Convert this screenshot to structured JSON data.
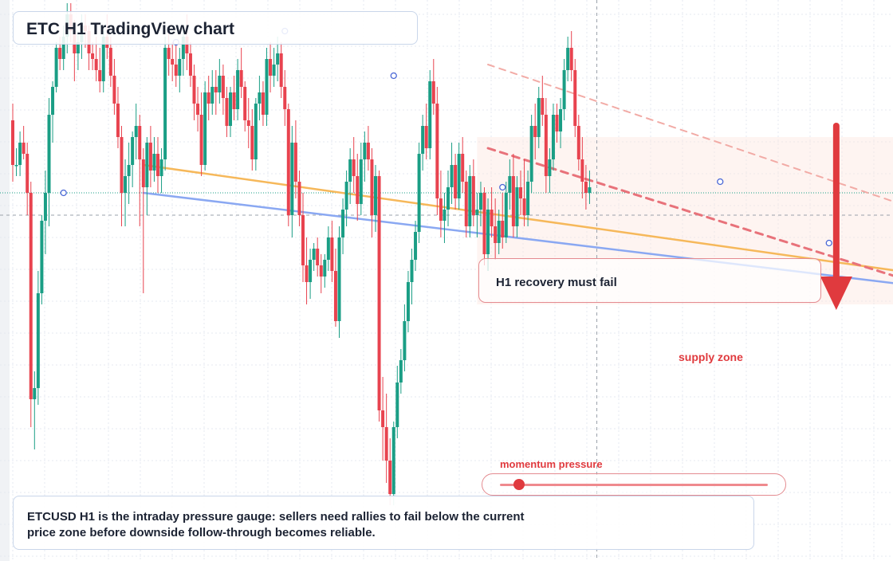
{
  "header": {
    "title": "ETC H1 TradingView chart"
  },
  "callout": {
    "text": "H1 recovery must fail"
  },
  "zone": {
    "label": "supply zone"
  },
  "gauge": {
    "label": "momentum pressure",
    "level": 0.07
  },
  "note": {
    "text": "ETCUSD H1 is the intraday pressure gauge: sellers need rallies to fail below the current price zone before downside follow-through becomes reliable."
  },
  "colors": {
    "bull": "#1a9e85",
    "bear": "#e8434f",
    "accent_red": "#e03a3e",
    "trend_orange": "#f6b85a",
    "trend_blue": "#8aa8f2",
    "supply_zone": "#fde7e0",
    "grid": "#e4e8f0",
    "price_line": "#1a9e85"
  },
  "icons": {
    "arrow": "down-arrow-icon",
    "marker": "circle-marker-icon"
  },
  "chart_data": {
    "type": "candlestick",
    "symbol": "ETCUSD",
    "timeframe": "H1",
    "y_units": "price (unlabeled axis)",
    "ylim": [
      0,
      100
    ],
    "current_price": 66,
    "grid": true,
    "candles": [
      [
        79,
        82,
        68,
        71
      ],
      [
        71,
        74,
        69,
        71
      ],
      [
        71,
        77,
        69,
        75
      ],
      [
        75,
        78,
        72,
        73
      ],
      [
        73,
        75,
        62,
        66
      ],
      [
        66,
        68,
        24,
        29
      ],
      [
        29,
        34,
        20,
        31
      ],
      [
        31,
        52,
        28,
        48
      ],
      [
        48,
        62,
        46,
        61
      ],
      [
        61,
        70,
        55,
        66
      ],
      [
        66,
        83,
        60,
        80
      ],
      [
        80,
        86,
        75,
        85
      ],
      [
        85,
        93,
        84,
        92
      ],
      [
        92,
        94,
        88,
        90
      ],
      [
        90,
        96,
        88,
        94
      ],
      [
        94,
        100,
        91,
        98
      ],
      [
        98,
        100,
        93,
        95
      ],
      [
        95,
        97,
        86,
        91
      ],
      [
        91,
        95,
        88,
        93
      ],
      [
        93,
        98,
        90,
        96
      ],
      [
        96,
        98,
        92,
        95
      ],
      [
        95,
        96,
        88,
        91
      ],
      [
        91,
        93,
        88,
        90
      ],
      [
        90,
        94,
        86,
        88
      ],
      [
        88,
        92,
        84,
        86
      ],
      [
        86,
        95,
        84,
        94
      ],
      [
        94,
        98,
        90,
        92
      ],
      [
        92,
        94,
        85,
        87
      ],
      [
        87,
        90,
        80,
        82
      ],
      [
        82,
        85,
        74,
        76
      ],
      [
        76,
        78,
        60,
        66
      ],
      [
        66,
        72,
        60,
        69
      ],
      [
        69,
        75,
        64,
        71
      ],
      [
        71,
        77,
        67,
        76
      ],
      [
        76,
        82,
        72,
        78
      ],
      [
        78,
        80,
        60,
        72
      ],
      [
        72,
        74,
        48,
        67
      ],
      [
        67,
        76,
        62,
        75
      ],
      [
        75,
        78,
        67,
        70
      ],
      [
        70,
        76,
        68,
        73
      ],
      [
        73,
        76,
        66,
        69
      ],
      [
        69,
        74,
        66,
        72
      ],
      [
        72,
        94,
        70,
        92
      ],
      [
        92,
        95,
        87,
        90
      ],
      [
        90,
        93,
        86,
        89
      ],
      [
        89,
        93,
        85,
        87
      ],
      [
        87,
        92,
        84,
        90
      ],
      [
        90,
        96,
        87,
        94
      ],
      [
        94,
        98,
        88,
        91
      ],
      [
        91,
        93,
        85,
        87
      ],
      [
        87,
        89,
        79,
        82
      ],
      [
        82,
        85,
        77,
        80
      ],
      [
        80,
        84,
        69,
        71
      ],
      [
        71,
        86,
        70,
        84
      ],
      [
        84,
        87,
        79,
        82
      ],
      [
        82,
        88,
        80,
        85
      ],
      [
        85,
        88,
        80,
        84
      ],
      [
        84,
        90,
        82,
        87
      ],
      [
        87,
        89,
        80,
        83
      ],
      [
        83,
        85,
        76,
        78
      ],
      [
        78,
        85,
        76,
        84
      ],
      [
        84,
        87,
        79,
        81
      ],
      [
        81,
        90,
        79,
        88
      ],
      [
        88,
        92,
        83,
        85
      ],
      [
        85,
        86,
        77,
        79
      ],
      [
        79,
        83,
        74,
        78
      ],
      [
        78,
        81,
        70,
        72
      ],
      [
        72,
        83,
        70,
        82
      ],
      [
        82,
        87,
        79,
        84
      ],
      [
        84,
        86,
        78,
        80
      ],
      [
        80,
        92,
        78,
        90
      ],
      [
        90,
        93,
        84,
        87
      ],
      [
        87,
        92,
        85,
        89
      ],
      [
        89,
        94,
        86,
        91
      ],
      [
        91,
        93,
        83,
        85
      ],
      [
        85,
        88,
        78,
        81
      ],
      [
        81,
        82,
        60,
        62
      ],
      [
        62,
        78,
        58,
        75
      ],
      [
        75,
        79,
        65,
        68
      ],
      [
        68,
        70,
        60,
        62
      ],
      [
        62,
        66,
        50,
        53
      ],
      [
        53,
        58,
        46,
        50
      ],
      [
        50,
        56,
        47,
        54
      ],
      [
        54,
        57,
        52,
        56
      ],
      [
        56,
        58,
        51,
        53
      ],
      [
        53,
        55,
        48,
        51
      ],
      [
        51,
        55,
        49,
        54
      ],
      [
        54,
        60,
        52,
        58
      ],
      [
        58,
        61,
        50,
        52
      ],
      [
        52,
        56,
        42,
        43
      ],
      [
        43,
        60,
        40,
        58
      ],
      [
        58,
        65,
        55,
        63
      ],
      [
        63,
        70,
        60,
        68
      ],
      [
        68,
        74,
        64,
        72
      ],
      [
        72,
        76,
        66,
        69
      ],
      [
        69,
        73,
        61,
        64
      ],
      [
        64,
        75,
        62,
        72
      ],
      [
        72,
        77,
        68,
        75
      ],
      [
        75,
        78,
        70,
        72
      ],
      [
        72,
        74,
        58,
        62
      ],
      [
        62,
        71,
        59,
        69
      ],
      [
        69,
        70,
        25,
        27
      ],
      [
        27,
        33,
        18,
        24
      ],
      [
        24,
        30,
        14,
        18
      ],
      [
        18,
        22,
        10,
        12
      ],
      [
        12,
        25,
        10,
        24
      ],
      [
        24,
        35,
        22,
        32
      ],
      [
        32,
        38,
        30,
        36
      ],
      [
        36,
        46,
        34,
        43
      ],
      [
        43,
        52,
        41,
        50
      ],
      [
        50,
        56,
        46,
        54
      ],
      [
        54,
        61,
        52,
        59
      ],
      [
        59,
        75,
        57,
        73
      ],
      [
        73,
        80,
        70,
        78
      ],
      [
        78,
        82,
        72,
        74
      ],
      [
        74,
        88,
        72,
        86
      ],
      [
        86,
        90,
        80,
        82
      ],
      [
        82,
        85,
        62,
        65
      ],
      [
        65,
        70,
        58,
        61
      ],
      [
        61,
        66,
        57,
        63
      ],
      [
        63,
        70,
        60,
        67
      ],
      [
        67,
        75,
        64,
        71
      ],
      [
        71,
        73,
        63,
        65
      ],
      [
        65,
        75,
        63,
        73
      ],
      [
        73,
        76,
        66,
        68
      ],
      [
        68,
        70,
        58,
        60
      ],
      [
        60,
        71,
        58,
        69
      ],
      [
        69,
        72,
        60,
        62
      ],
      [
        62,
        66,
        58,
        63
      ],
      [
        63,
        68,
        60,
        66
      ],
      [
        66,
        67,
        53,
        55
      ],
      [
        55,
        65,
        52,
        63
      ],
      [
        63,
        67,
        58,
        60
      ],
      [
        60,
        65,
        54,
        57
      ],
      [
        57,
        63,
        55,
        61
      ],
      [
        61,
        66,
        56,
        58
      ],
      [
        58,
        68,
        57,
        66
      ],
      [
        66,
        72,
        63,
        69
      ],
      [
        69,
        73,
        58,
        60
      ],
      [
        60,
        69,
        58,
        67
      ],
      [
        67,
        70,
        62,
        65
      ],
      [
        65,
        72,
        60,
        62
      ],
      [
        62,
        70,
        60,
        68
      ],
      [
        68,
        80,
        66,
        78
      ],
      [
        78,
        82,
        72,
        76
      ],
      [
        76,
        85,
        74,
        83
      ],
      [
        83,
        87,
        78,
        80
      ],
      [
        80,
        83,
        66,
        69
      ],
      [
        69,
        74,
        66,
        72
      ],
      [
        72,
        82,
        70,
        80
      ],
      [
        80,
        82,
        75,
        77
      ],
      [
        77,
        83,
        74,
        81
      ],
      [
        81,
        90,
        79,
        88
      ],
      [
        88,
        94,
        86,
        92
      ],
      [
        92,
        95,
        86,
        88
      ],
      [
        88,
        90,
        76,
        78
      ],
      [
        78,
        80,
        70,
        72
      ],
      [
        72,
        76,
        65,
        68
      ],
      [
        68,
        71,
        63,
        66
      ],
      [
        66,
        70,
        64,
        67
      ]
    ],
    "trendlines": [
      {
        "name": "",
        "from": [
          36,
          71
        ],
        "to": [
          266,
          50
        ]
      },
      {
        "name": "",
        "from": [
          36,
          66
        ],
        "to": [
          266,
          48
        ]
      },
      {
        "name": "",
        "from": [
          131,
          89
        ],
        "to": [
          263,
          60
        ]
      },
      {
        "name": "",
        "from": [
          131,
          74
        ],
        "to": [
          263,
          47
        ]
      }
    ],
    "supply_zone": {
      "x": [
        128,
        266
      ],
      "y": [
        46,
        76
      ]
    },
    "markers": [
      [
        14,
        66
      ],
      [
        45,
        93
      ],
      [
        75,
        95
      ],
      [
        105,
        87
      ],
      [
        135,
        67
      ],
      [
        195,
        68
      ],
      [
        225,
        57
      ],
      [
        255,
        68
      ]
    ],
    "arrow": {
      "x": 227,
      "y_from": 78,
      "y_to": 45
    },
    "crosshair": {
      "x": 161,
      "y": 62
    }
  }
}
